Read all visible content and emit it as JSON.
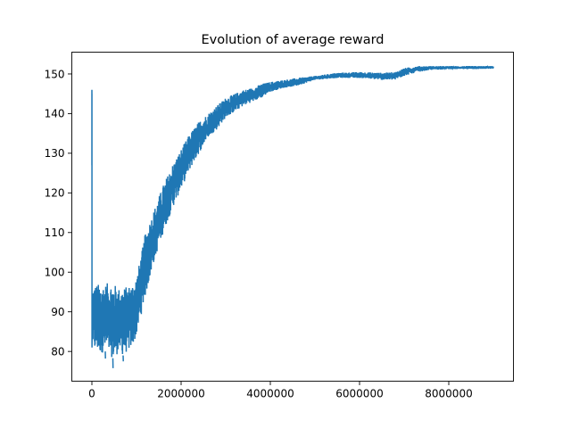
{
  "chart_data": {
    "type": "line",
    "title": "Evolution of average reward",
    "xlabel": "",
    "ylabel": "",
    "xlim": [
      -450000,
      9450000
    ],
    "ylim": [
      72.5,
      155.5
    ],
    "x_ticks": [
      0,
      2000000,
      4000000,
      6000000,
      8000000
    ],
    "x_tick_labels": [
      "0",
      "2000000",
      "4000000",
      "6000000",
      "8000000"
    ],
    "y_ticks": [
      80,
      90,
      100,
      110,
      120,
      130,
      140,
      150
    ],
    "y_tick_labels": [
      "80",
      "90",
      "100",
      "110",
      "120",
      "130",
      "140",
      "150"
    ],
    "grid": false,
    "legend": "none",
    "color": "#1f77b4",
    "series": [
      {
        "x": [
          0,
          20000,
          50000,
          100000,
          200000,
          300000,
          400000,
          500000,
          600000,
          700000,
          800000,
          900000,
          1000000,
          1100000,
          1200000,
          1400000,
          1600000,
          1800000,
          2000000,
          2200000,
          2400000,
          2600000,
          2800000,
          3000000,
          3200000,
          3400000,
          3600000,
          3800000,
          4000000,
          4300000,
          4600000,
          5000000,
          5500000,
          6000000,
          6500000,
          6800000,
          7000000,
          7300000,
          7600000,
          8000000,
          8500000,
          9000000
        ],
        "y_low": [
          127,
          81,
          80,
          80,
          79.5,
          80,
          79,
          78,
          80,
          79,
          80,
          81,
          84,
          89,
          94,
          103,
          110,
          116,
          121,
          126,
          130,
          134,
          136,
          139,
          140.5,
          142,
          143,
          144,
          145.5,
          146.5,
          147,
          148.5,
          149,
          149,
          148.5,
          148.5,
          149.5,
          150.5,
          151,
          151.2,
          151.2,
          151.3
        ],
        "y_high": [
          146,
          97,
          97,
          97,
          97,
          97,
          97.5,
          97,
          96,
          96,
          96.5,
          97,
          99,
          104,
          110,
          116,
          122,
          127,
          131,
          135,
          138,
          140,
          142,
          144,
          145,
          146,
          146.5,
          147.5,
          148,
          148.5,
          149,
          149.5,
          150.3,
          150.5,
          150.3,
          150.5,
          151.5,
          152,
          152,
          152,
          152,
          152
        ],
        "y_min_outliers": [
          [
            470000,
            75.8
          ],
          [
            700000,
            77.5
          ],
          [
            300000,
            78.2
          ]
        ]
      }
    ]
  }
}
